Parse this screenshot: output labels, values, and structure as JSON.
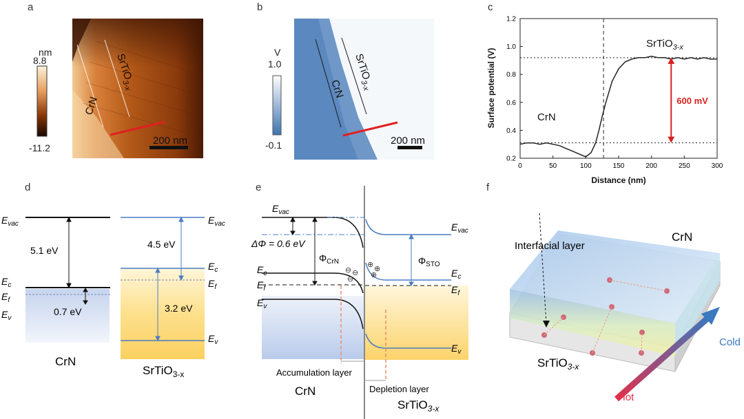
{
  "panels": {
    "a": "a",
    "b": "b",
    "c": "c",
    "d": "d",
    "e": "e",
    "f": "f"
  },
  "panel_a": {
    "unit": "nm",
    "max": "8.8",
    "min": "-11.2",
    "label_crn": "CrN",
    "label_sto": "SrTiO",
    "label_sto_sub": "3-x",
    "scale": "200 nm",
    "colors": {
      "dark": "#1a0a00",
      "mid": "#a04a10",
      "light": "#f7d8a8",
      "line": "#e02020"
    }
  },
  "panel_b": {
    "unit": "V",
    "max": "1.0",
    "min": "-0.1",
    "label_crn": "CrN",
    "label_sto": "SrTiO",
    "label_sto_sub": "3-x",
    "scale": "200 nm",
    "colors": {
      "dark": "#3d74b0",
      "light": "#ffffff",
      "line": "#e02020"
    }
  },
  "chart_data": {
    "type": "line",
    "title": "",
    "xlabel": "Distance (nm)",
    "ylabel": "Surface potential (V)",
    "xlim": [
      0,
      300
    ],
    "ylim": [
      0.2,
      1.2
    ],
    "xticks": [
      "0",
      "50",
      "100",
      "150",
      "200",
      "250",
      "300"
    ],
    "yticks": [
      "0.2",
      "0.4",
      "0.6",
      "0.8",
      "1.0",
      "1.2"
    ],
    "x": [
      0,
      10,
      20,
      30,
      40,
      50,
      60,
      70,
      80,
      90,
      100,
      108,
      115,
      120,
      125,
      130,
      135,
      140,
      150,
      160,
      170,
      180,
      190,
      200,
      210,
      220,
      230,
      240,
      250,
      260,
      270,
      280,
      290,
      300
    ],
    "y": [
      0.3,
      0.31,
      0.31,
      0.3,
      0.31,
      0.3,
      0.29,
      0.27,
      0.25,
      0.23,
      0.21,
      0.24,
      0.31,
      0.4,
      0.5,
      0.59,
      0.67,
      0.75,
      0.84,
      0.89,
      0.91,
      0.92,
      0.92,
      0.93,
      0.92,
      0.92,
      0.91,
      0.92,
      0.91,
      0.92,
      0.91,
      0.92,
      0.91,
      0.91
    ],
    "vline_x": 127,
    "hlines": [
      0.92,
      0.31
    ],
    "annotation": "600 mV",
    "label_crn": "CrN",
    "label_sto": "SrTiO",
    "label_sto_sub": "3-x",
    "grid": false,
    "line_color": "#222222",
    "arrow_color": "#d82020"
  },
  "panel_d": {
    "evac": "E",
    "evac_sub": "vac",
    "ec": "E",
    "ec_sub": "c",
    "ef": "E",
    "ef_sub": "f",
    "ev": "E",
    "ev_sub": "v",
    "crn_wf": "5.1 eV",
    "crn_gap": "0.7 eV",
    "sto_chi": "4.5 eV",
    "sto_gap": "3.2 eV",
    "crn": "CrN",
    "sto": "SrTiO",
    "sto_sub": "3-x",
    "colors": {
      "blue": "#9fb6dc",
      "yellow": "#fbd567",
      "line_blue": "#4a7cc0"
    }
  },
  "panel_e": {
    "evac": "E",
    "evac_sub": "vac",
    "ec": "E",
    "ec_sub": "c",
    "ef": "E",
    "ef_sub": "f",
    "ev": "E",
    "ev_sub": "v",
    "dphi": "ΔΦ = 0.6 eV",
    "phi_crn": "Φ",
    "phi_crn_sub": "CrN",
    "phi_sto": "Φ",
    "phi_sto_sub": "STO",
    "accum": "Accumulation layer",
    "depl": "Depletion layer",
    "crn": "CrN",
    "sto": "SrTiO",
    "sto_sub": "3-x",
    "minus": "⊖",
    "plus": "⊕"
  },
  "panel_f": {
    "interfacial": "Interfacial layer",
    "crn": "CrN",
    "sto": "SrTiO",
    "sto_sub": "3-x",
    "cold": "Cold",
    "hot": "Hot",
    "colors": {
      "cold": "#3a78c0",
      "hot": "#e0304a"
    }
  }
}
